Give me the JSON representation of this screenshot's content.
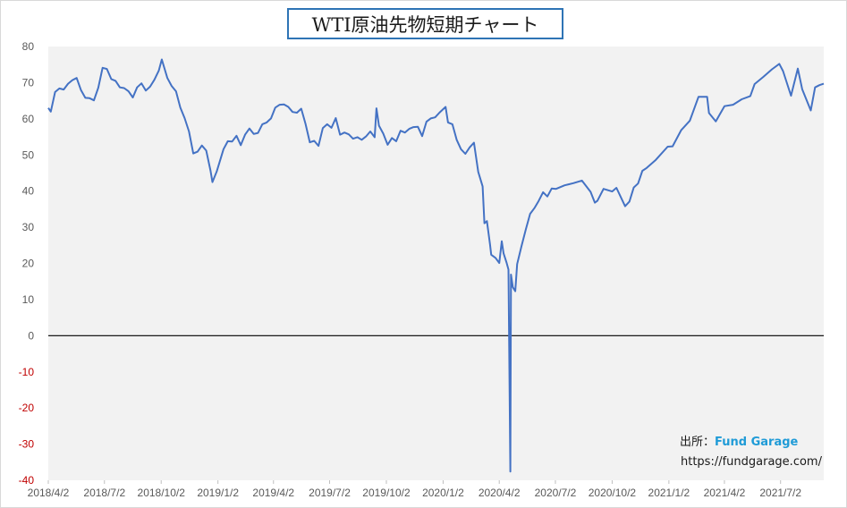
{
  "chart_data": {
    "type": "line",
    "title": "WTI原油先物短期チャート",
    "xlabel": "",
    "ylabel": "",
    "ylim": [
      -40,
      80
    ],
    "yticks": [
      80,
      70,
      60,
      50,
      40,
      30,
      20,
      10,
      0,
      -10,
      -20,
      -30,
      -40
    ],
    "xlim": [
      "2018/4/2",
      "2021/9/10"
    ],
    "xtick_labels": [
      "2018/4/2",
      "2018/7/2",
      "2018/10/2",
      "2019/1/2",
      "2019/4/2",
      "2019/7/2",
      "2019/10/2",
      "2020/1/2",
      "2020/4/2",
      "2020/7/2",
      "2020/10/2",
      "2021/1/2",
      "2021/4/2",
      "2021/7/2"
    ],
    "grid": false,
    "zero_line": true,
    "plot_background": "#f2f2f2",
    "series": [
      {
        "color": "#4472c4",
        "x": [
          "2018/4/2",
          "2018/4/6",
          "2018/4/13",
          "2018/4/20",
          "2018/4/27",
          "2018/5/4",
          "2018/5/11",
          "2018/5/18",
          "2018/5/25",
          "2018/6/1",
          "2018/6/8",
          "2018/6/15",
          "2018/6/22",
          "2018/6/29",
          "2018/7/6",
          "2018/7/13",
          "2018/7/20",
          "2018/7/27",
          "2018/8/3",
          "2018/8/10",
          "2018/8/17",
          "2018/8/24",
          "2018/8/31",
          "2018/9/7",
          "2018/9/14",
          "2018/9/21",
          "2018/9/28",
          "2018/10/3",
          "2018/10/12",
          "2018/10/19",
          "2018/10/26",
          "2018/11/2",
          "2018/11/9",
          "2018/11/16",
          "2018/11/23",
          "2018/11/30",
          "2018/12/7",
          "2018/12/14",
          "2018/12/21",
          "2018/12/24",
          "2018/12/31",
          "2019/1/11",
          "2019/1/18",
          "2019/1/25",
          "2019/2/1",
          "2019/2/8",
          "2019/2/15",
          "2019/2/22",
          "2019/3/1",
          "2019/3/8",
          "2019/3/15",
          "2019/3/22",
          "2019/3/29",
          "2019/4/5",
          "2019/4/12",
          "2019/4/19",
          "2019/4/26",
          "2019/5/3",
          "2019/5/10",
          "2019/5/17",
          "2019/5/24",
          "2019/5/31",
          "2019/6/7",
          "2019/6/14",
          "2019/6/21",
          "2019/6/28",
          "2019/7/5",
          "2019/7/12",
          "2019/7/19",
          "2019/7/26",
          "2019/8/2",
          "2019/8/9",
          "2019/8/16",
          "2019/8/23",
          "2019/8/30",
          "2019/9/6",
          "2019/9/13",
          "2019/9/16",
          "2019/9/20",
          "2019/9/27",
          "2019/10/4",
          "2019/10/11",
          "2019/10/18",
          "2019/10/25",
          "2019/11/1",
          "2019/11/8",
          "2019/11/15",
          "2019/11/22",
          "2019/11/29",
          "2019/12/6",
          "2019/12/13",
          "2019/12/20",
          "2019/12/27",
          "2020/1/6",
          "2020/1/10",
          "2020/1/17",
          "2020/1/24",
          "2020/1/31",
          "2020/2/7",
          "2020/2/14",
          "2020/2/21",
          "2020/2/28",
          "2020/3/6",
          "2020/3/9",
          "2020/3/13",
          "2020/3/18",
          "2020/3/20",
          "2020/3/27",
          "2020/4/2",
          "2020/4/6",
          "2020/4/9",
          "2020/4/14",
          "2020/4/17",
          "2020/4/20",
          "2020/4/21",
          "2020/4/24",
          "2020/4/28",
          "2020/5/1",
          "2020/5/8",
          "2020/5/15",
          "2020/5/22",
          "2020/5/29",
          "2020/6/5",
          "2020/6/12",
          "2020/6/19",
          "2020/6/26",
          "2020/7/3",
          "2020/7/17",
          "2020/7/31",
          "2020/8/14",
          "2020/8/28",
          "2020/9/4",
          "2020/9/8",
          "2020/9/18",
          "2020/10/2",
          "2020/10/9",
          "2020/10/23",
          "2020/10/30",
          "2020/11/6",
          "2020/11/13",
          "2020/11/20",
          "2020/11/27",
          "2020/12/11",
          "2020/12/31",
          "2021/1/8",
          "2021/1/22",
          "2021/2/5",
          "2021/2/19",
          "2021/3/5",
          "2021/3/8",
          "2021/3/19",
          "2021/4/2",
          "2021/4/16",
          "2021/4/30",
          "2021/5/14",
          "2021/5/21",
          "2021/6/4",
          "2021/6/18",
          "2021/6/30",
          "2021/7/6",
          "2021/7/19",
          "2021/7/30",
          "2021/8/6",
          "2021/8/20",
          "2021/8/27",
          "2021/9/3",
          "2021/9/10"
        ],
        "y": [
          63.0,
          62.0,
          67.4,
          68.4,
          68.1,
          69.7,
          70.7,
          71.3,
          67.9,
          65.8,
          65.7,
          65.1,
          68.6,
          74.1,
          73.8,
          71.0,
          70.5,
          68.7,
          68.5,
          67.6,
          65.9,
          68.7,
          69.8,
          67.8,
          68.9,
          70.8,
          73.3,
          76.4,
          71.3,
          69.1,
          67.6,
          63.1,
          60.2,
          56.5,
          50.4,
          50.9,
          52.6,
          51.2,
          45.6,
          42.5,
          45.4,
          51.6,
          53.8,
          53.7,
          55.3,
          52.7,
          55.6,
          57.3,
          55.8,
          56.1,
          58.5,
          59.0,
          60.1,
          63.1,
          63.9,
          64.0,
          63.3,
          61.9,
          61.7,
          62.8,
          58.6,
          53.5,
          53.9,
          52.5,
          57.4,
          58.5,
          57.5,
          60.2,
          55.6,
          56.2,
          55.7,
          54.5,
          54.9,
          54.2,
          55.1,
          56.5,
          54.9,
          62.9,
          58.1,
          55.9,
          52.8,
          54.7,
          53.8,
          56.7,
          56.2,
          57.2,
          57.7,
          57.8,
          55.2,
          59.2,
          60.1,
          60.4,
          61.7,
          63.3,
          59.0,
          58.5,
          54.2,
          51.6,
          50.3,
          52.1,
          53.4,
          45.3,
          41.3,
          31.1,
          31.7,
          25.2,
          22.4,
          21.5,
          20.1,
          26.1,
          22.8,
          20.1,
          18.3,
          -37.6,
          16.9,
          13.4,
          12.3,
          19.8,
          24.7,
          29.4,
          33.7,
          35.3,
          37.3,
          39.7,
          38.5,
          40.7,
          40.6,
          41.6,
          42.2,
          42.9,
          39.8,
          36.8,
          37.3,
          40.6,
          39.9,
          40.9,
          35.8,
          37.1,
          41.0,
          42.1,
          45.6,
          46.4,
          48.5,
          52.3,
          52.4,
          56.9,
          59.5,
          66.1,
          66.1,
          61.6,
          59.3,
          63.5,
          63.9,
          65.4,
          66.3,
          69.6,
          71.6,
          73.7,
          75.2,
          73.2,
          66.4,
          73.9,
          68.2,
          62.3,
          68.7,
          69.3,
          69.7
        ]
      }
    ]
  },
  "credit": {
    "source_label": "出所：",
    "brand": "Fund Garage",
    "url": "https://fundgarage.com/"
  }
}
